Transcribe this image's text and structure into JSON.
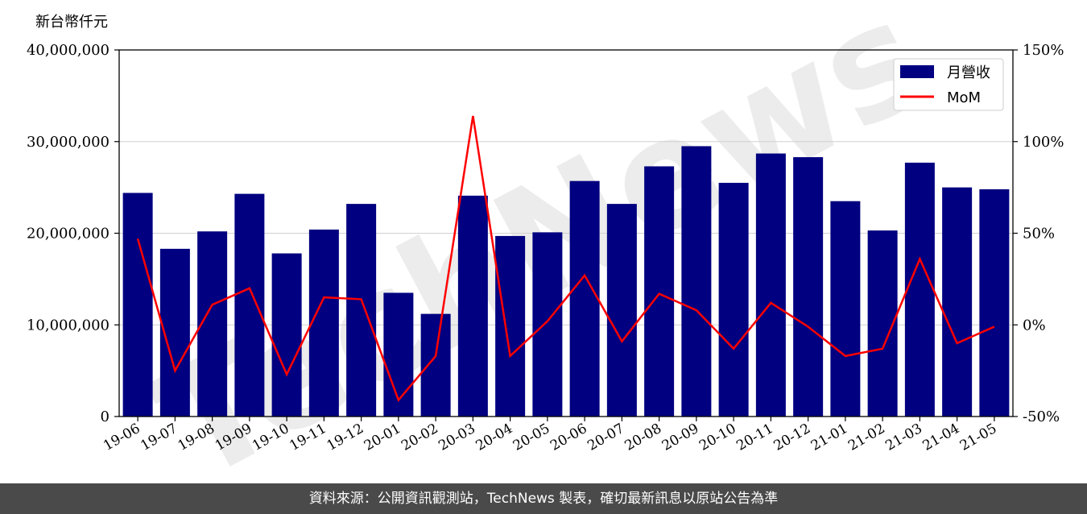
{
  "chart_data": {
    "type": "bar",
    "y_unit_label": "新台幣仟元",
    "categories": [
      "19-06",
      "19-07",
      "19-08",
      "19-09",
      "19-10",
      "19-11",
      "19-12",
      "20-01",
      "20-02",
      "20-03",
      "20-04",
      "20-05",
      "20-06",
      "20-07",
      "20-08",
      "20-09",
      "20-10",
      "20-11",
      "20-12",
      "21-01",
      "21-02",
      "21-03",
      "21-04",
      "21-05"
    ],
    "series": [
      {
        "name": "月營收",
        "type": "bar",
        "axis": "left",
        "color": "#000080",
        "values": [
          24400000,
          18300000,
          20200000,
          24300000,
          17800000,
          20400000,
          23200000,
          13500000,
          11200000,
          24100000,
          19700000,
          20100000,
          25700000,
          23200000,
          27300000,
          29500000,
          25500000,
          28700000,
          28300000,
          23500000,
          20300000,
          27700000,
          25000000,
          24800000
        ]
      },
      {
        "name": "MoM",
        "type": "line",
        "axis": "right",
        "color": "#ff0000",
        "values": [
          47,
          -25,
          11,
          20,
          -27,
          15,
          14,
          -41,
          -17,
          114,
          -17,
          2,
          27,
          -9,
          17,
          8,
          -13,
          12,
          -1,
          -17,
          -13,
          36,
          -10,
          -1
        ]
      }
    ],
    "ylim_left": [
      0,
      40000000
    ],
    "yticks_left": [
      "0",
      "10,000,000",
      "20,000,000",
      "30,000,000",
      "40,000,000"
    ],
    "ylim_right": [
      -50,
      150
    ],
    "yticks_right": [
      "-50%",
      "0%",
      "50%",
      "100%",
      "150%"
    ],
    "grid": true,
    "legend_position": "top-right"
  },
  "watermark": "TechNews",
  "footer": {
    "text": "資料來源：公開資訊觀測站，TechNews 製表，確切最新訊息以原站公告為準"
  }
}
